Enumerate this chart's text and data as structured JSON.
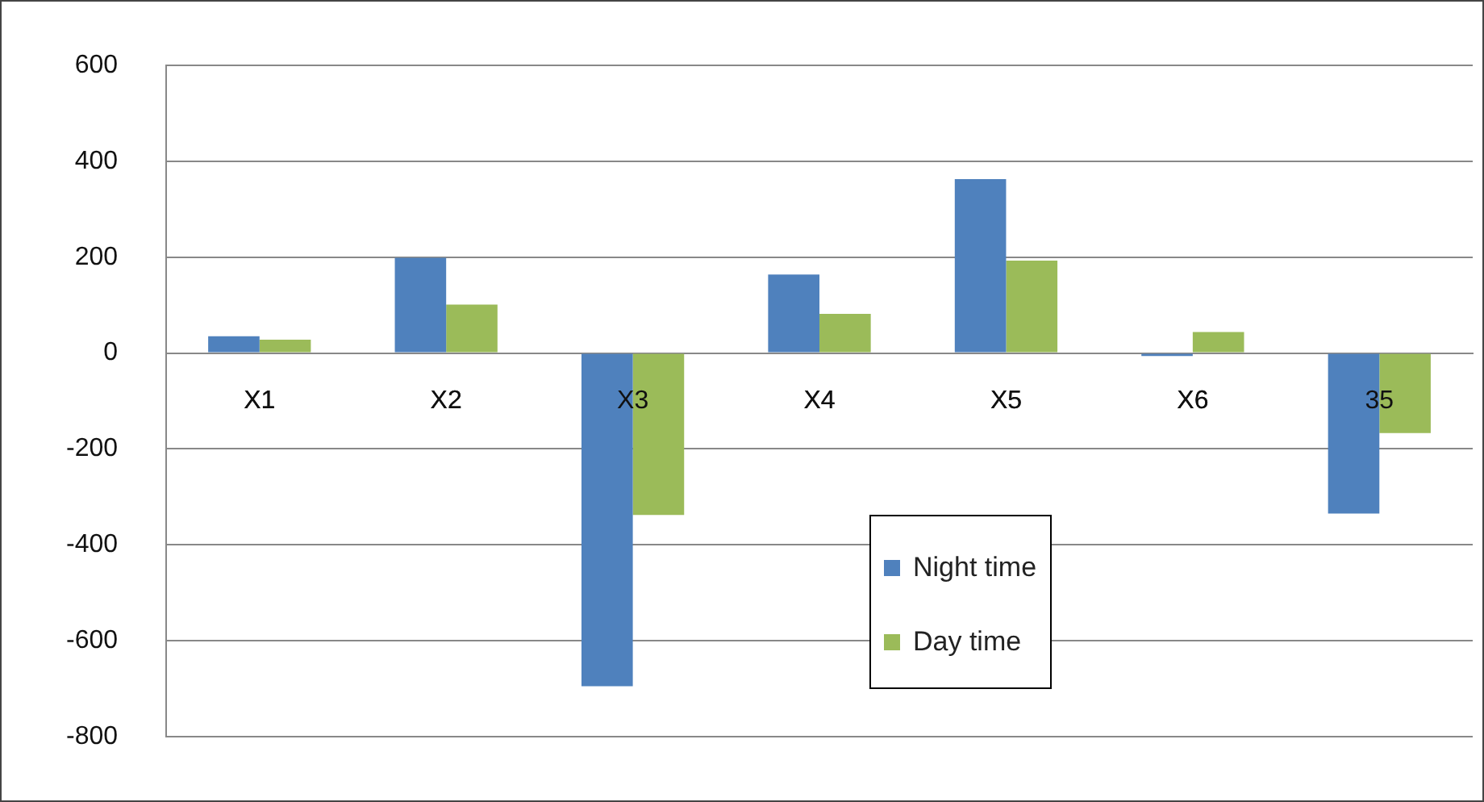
{
  "chart_data": {
    "type": "bar",
    "categories": [
      "X1",
      "X2",
      "X3",
      "X4",
      "X5",
      "X6",
      "35"
    ],
    "series": [
      {
        "name": "Night time",
        "color": "#4f81bd",
        "values": [
          35,
          199,
          -695,
          164,
          363,
          -6,
          -335
        ]
      },
      {
        "name": "Day time",
        "color": "#9bbb59",
        "values": [
          28,
          101,
          -338,
          82,
          193,
          44,
          -167
        ]
      }
    ],
    "ylim": [
      -800,
      600
    ],
    "yticks": [
      -800,
      -600,
      -400,
      -200,
      0,
      200,
      400,
      600
    ],
    "grid": "y",
    "legend": "bottom"
  }
}
